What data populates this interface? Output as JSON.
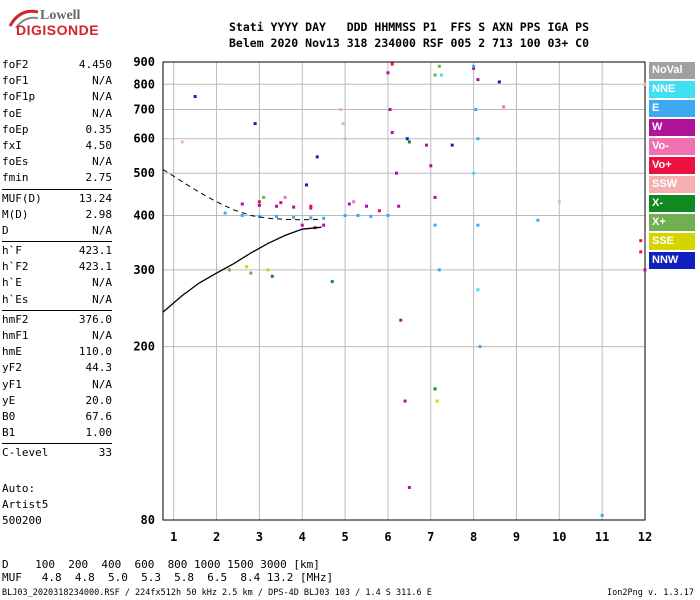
{
  "logo": {
    "line1": "Lowell",
    "line2": "DIGISONDE"
  },
  "header": {
    "row1": "Stati YYYY DAY   DDD HHMMSS P1  FFS S AXN PPS IGA PS",
    "row2": "Belem 2020 Nov13 318 234000 RSF 005 2 713 100 03+ C0"
  },
  "params": [
    {
      "k": "foF2",
      "v": "4.450"
    },
    {
      "k": "foF1",
      "v": "N/A"
    },
    {
      "k": "foF1p",
      "v": "N/A"
    },
    {
      "k": "foE",
      "v": "N/A"
    },
    {
      "k": "foEp",
      "v": "0.35"
    },
    {
      "k": "fxI",
      "v": "4.50"
    },
    {
      "k": "foEs",
      "v": "N/A"
    },
    {
      "k": "fmin",
      "v": "2.75"
    },
    {
      "k": "MUF(D)",
      "v": "13.24"
    },
    {
      "k": "M(D)",
      "v": "2.98"
    },
    {
      "k": "D",
      "v": "N/A"
    },
    {
      "k": "h`F",
      "v": "423.1"
    },
    {
      "k": "h`F2",
      "v": "423.1"
    },
    {
      "k": "h`E",
      "v": "N/A"
    },
    {
      "k": "h`Es",
      "v": "N/A"
    },
    {
      "k": "hmF2",
      "v": "376.0"
    },
    {
      "k": "hmF1",
      "v": "N/A"
    },
    {
      "k": "hmE",
      "v": "110.0"
    },
    {
      "k": "yF2",
      "v": "44.3"
    },
    {
      "k": "yF1",
      "v": "N/A"
    },
    {
      "k": "yE",
      "v": "20.0"
    },
    {
      "k": "B0",
      "v": "67.6"
    },
    {
      "k": "B1",
      "v": "1.00"
    },
    {
      "k": "C-level",
      "v": "33"
    }
  ],
  "auto": {
    "l1": "Auto:",
    "l2": "Artist5",
    "l3": "500200"
  },
  "muf_table": {
    "row1": "D    100  200  400  600  800 1000 1500 3000 [km]",
    "row2": "MUF   4.8  4.8  5.0  5.3  5.8  6.5  8.4 13.2 [MHz]"
  },
  "footer": {
    "left": "BLJ03_2020318234000.RSF / 224fx512h 50 kHz 2.5 km / DPS-4D BLJ03 103 / 1.4 S 311.6 E",
    "right": "Ion2Png v. 1.3.17"
  },
  "legend": [
    {
      "label": "NoVal",
      "bg": "#a0a0a0",
      "fg": "#ffffff"
    },
    {
      "label": "NNE",
      "bg": "#40e0f0",
      "fg": "#ffffff"
    },
    {
      "label": "E",
      "bg": "#3ea8f0",
      "fg": "#ffffff"
    },
    {
      "label": "W",
      "bg": "#b0129a",
      "fg": "#ffffff"
    },
    {
      "label": "Vo-",
      "bg": "#f070b0",
      "fg": "#ffffff"
    },
    {
      "label": "Vo+",
      "bg": "#ee1040",
      "fg": "#ffffff"
    },
    {
      "label": "SSW",
      "bg": "#f4b0b0",
      "fg": "#ffffff"
    },
    {
      "label": "X-",
      "bg": "#108a20",
      "fg": "#ffffff"
    },
    {
      "label": "X+",
      "bg": "#70b050",
      "fg": "#ffffff"
    },
    {
      "label": "SSE",
      "bg": "#d4d400",
      "fg": "#ffffff"
    },
    {
      "label": "NNW",
      "bg": "#1020c0",
      "fg": "#ffffff"
    }
  ],
  "chart_data": {
    "type": "scatter",
    "xlabel": "",
    "ylabel": "",
    "xlim": [
      0.75,
      12.0
    ],
    "ylim": [
      80,
      900
    ],
    "x_ticks": [
      1,
      2,
      3,
      4,
      5,
      6,
      7,
      8,
      9,
      10,
      11,
      12
    ],
    "y_ticks": [
      80,
      200,
      300,
      400,
      500,
      600,
      700,
      800,
      900
    ],
    "grid": true,
    "y_scale": "log",
    "profile_solid": [
      [
        0.75,
        240
      ],
      [
        1.2,
        262
      ],
      [
        1.6,
        280
      ],
      [
        2.0,
        295
      ],
      [
        2.4,
        310
      ],
      [
        2.8,
        328
      ],
      [
        3.2,
        345
      ],
      [
        3.6,
        360
      ],
      [
        4.0,
        372
      ],
      [
        4.45,
        376
      ]
    ],
    "profile_dashed": [
      [
        0.75,
        510
      ],
      [
        1.2,
        478
      ],
      [
        1.6,
        452
      ],
      [
        2.0,
        430
      ],
      [
        2.4,
        412
      ],
      [
        2.8,
        400
      ],
      [
        3.2,
        394
      ],
      [
        3.6,
        392
      ],
      [
        4.0,
        391
      ],
      [
        4.45,
        392
      ]
    ],
    "traces": [
      {
        "name": "W",
        "color": "#b0129a",
        "points": [
          [
            2.6,
            425
          ],
          [
            3.0,
            422
          ],
          [
            3.4,
            420
          ],
          [
            3.8,
            418
          ],
          [
            4.2,
            416
          ],
          [
            4.5,
            380
          ],
          [
            4.3,
            375
          ],
          [
            4.0,
            380
          ],
          [
            5.1,
            425
          ],
          [
            5.5,
            420
          ],
          [
            6.0,
            850
          ],
          [
            6.05,
            700
          ],
          [
            6.1,
            620
          ],
          [
            6.2,
            500
          ],
          [
            6.25,
            420
          ],
          [
            6.3,
            230
          ],
          [
            6.4,
            150
          ],
          [
            6.5,
            95
          ],
          [
            6.9,
            580
          ],
          [
            7.0,
            520
          ],
          [
            7.1,
            440
          ],
          [
            8.0,
            870
          ],
          [
            8.1,
            820
          ],
          [
            12.0,
            300
          ]
        ]
      },
      {
        "name": "E",
        "color": "#3ea8f0",
        "points": [
          [
            2.2,
            405
          ],
          [
            2.6,
            400
          ],
          [
            3.0,
            398
          ],
          [
            3.4,
            398
          ],
          [
            3.8,
            396
          ],
          [
            4.2,
            395
          ],
          [
            4.5,
            394
          ],
          [
            5.0,
            400
          ],
          [
            5.3,
            400
          ],
          [
            5.6,
            398
          ],
          [
            6.0,
            400
          ],
          [
            7.1,
            380
          ],
          [
            7.2,
            300
          ],
          [
            8.0,
            880
          ],
          [
            8.05,
            700
          ],
          [
            8.1,
            600
          ],
          [
            8.1,
            380
          ],
          [
            8.15,
            200
          ],
          [
            9.5,
            390
          ],
          [
            11.0,
            82
          ]
        ]
      },
      {
        "name": "Vo+",
        "color": "#ee1040",
        "points": [
          [
            3.0,
            430
          ],
          [
            3.5,
            428
          ],
          [
            4.2,
            420
          ],
          [
            5.8,
            410
          ],
          [
            6.1,
            890
          ],
          [
            11.9,
            350
          ],
          [
            11.9,
            330
          ]
        ]
      },
      {
        "name": "SSW",
        "color": "#f4b0b0",
        "points": [
          [
            1.2,
            590
          ],
          [
            4.9,
            700
          ],
          [
            4.95,
            650
          ],
          [
            5.0,
            600
          ],
          [
            10.0,
            430
          ],
          [
            12.0,
            800
          ]
        ]
      },
      {
        "name": "X-",
        "color": "#108a20",
        "points": [
          [
            3.3,
            290
          ],
          [
            4.7,
            282
          ],
          [
            6.5,
            590
          ],
          [
            7.1,
            160
          ]
        ]
      },
      {
        "name": "X+",
        "color": "#70b050",
        "points": [
          [
            2.3,
            300
          ],
          [
            2.8,
            295
          ],
          [
            3.1,
            440
          ],
          [
            7.1,
            840
          ],
          [
            7.2,
            880
          ]
        ]
      },
      {
        "name": "SSE",
        "color": "#d4d400",
        "points": [
          [
            2.7,
            305
          ],
          [
            3.2,
            300
          ],
          [
            7.15,
            150
          ]
        ]
      },
      {
        "name": "NNW",
        "color": "#1020c0",
        "points": [
          [
            1.5,
            750
          ],
          [
            2.9,
            650
          ],
          [
            4.35,
            545
          ],
          [
            6.45,
            600
          ],
          [
            7.5,
            580
          ],
          [
            8.6,
            810
          ],
          [
            4.1,
            470
          ]
        ]
      },
      {
        "name": "NNE",
        "color": "#40e0f0",
        "points": [
          [
            7.25,
            840
          ],
          [
            8.0,
            500
          ],
          [
            8.1,
            270
          ]
        ]
      },
      {
        "name": "Vo-",
        "color": "#f070b0",
        "points": [
          [
            3.6,
            440
          ],
          [
            5.2,
            430
          ],
          [
            8.7,
            710
          ]
        ]
      }
    ]
  }
}
